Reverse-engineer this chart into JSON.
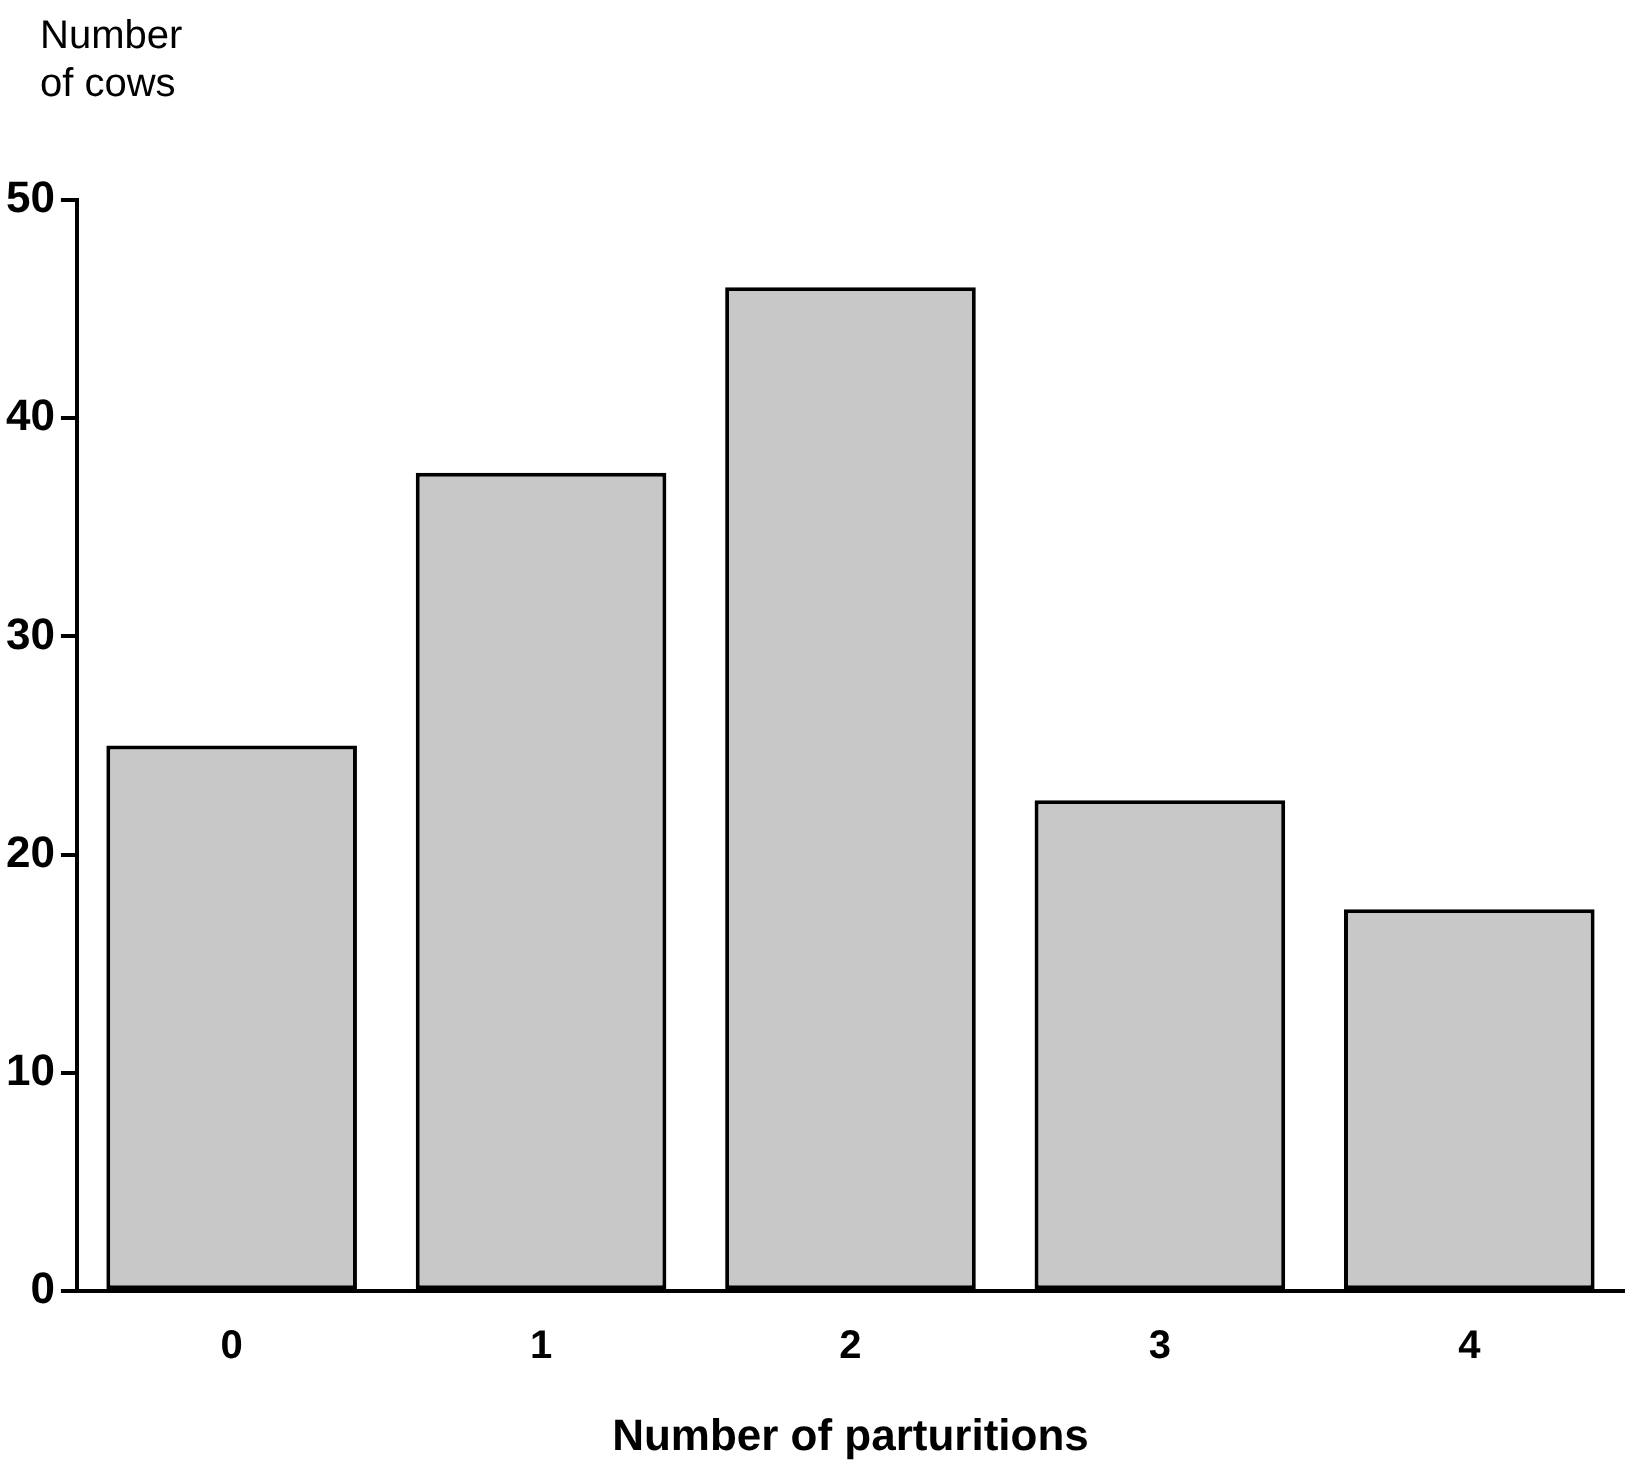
{
  "chart_data": {
    "type": "bar",
    "xlabel": "Number of parturitions",
    "ylabel": "Number of cows",
    "categories": [
      "0",
      "1",
      "2",
      "3",
      "4"
    ],
    "values": [
      25,
      37.5,
      46,
      22.5,
      17.5
    ],
    "color": "#c8c8c8",
    "ylim": [
      0,
      50
    ],
    "yticks": [
      0,
      10,
      20,
      30,
      40,
      50
    ],
    "grid": false,
    "legend": false
  }
}
